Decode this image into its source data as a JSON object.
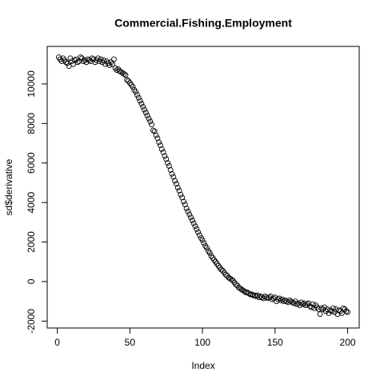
{
  "chart_data": {
    "type": "scatter",
    "title": "Commercial.Fishing.Employment",
    "x_label": "Index",
    "y_label": "sd$derivative",
    "x": [
      1,
      2,
      3,
      4,
      5,
      6,
      7,
      8,
      9,
      10,
      11,
      12,
      13,
      14,
      15,
      16,
      17,
      18,
      19,
      20,
      21,
      22,
      23,
      24,
      25,
      26,
      27,
      28,
      29,
      30,
      31,
      32,
      33,
      34,
      35,
      36,
      37,
      38,
      39,
      40,
      41,
      42,
      43,
      44,
      45,
      46,
      47,
      48,
      49,
      50,
      51,
      52,
      53,
      54,
      55,
      56,
      57,
      58,
      59,
      60,
      61,
      62,
      63,
      64,
      65,
      66,
      67,
      68,
      69,
      70,
      71,
      72,
      73,
      74,
      75,
      76,
      77,
      78,
      79,
      80,
      81,
      82,
      83,
      84,
      85,
      86,
      87,
      88,
      89,
      90,
      91,
      92,
      93,
      94,
      95,
      96,
      97,
      98,
      99,
      100,
      101,
      102,
      103,
      104,
      105,
      106,
      107,
      108,
      109,
      110,
      111,
      112,
      113,
      114,
      115,
      116,
      117,
      118,
      119,
      120,
      121,
      122,
      123,
      124,
      125,
      126,
      127,
      128,
      129,
      130,
      131,
      132,
      133,
      134,
      135,
      136,
      137,
      138,
      139,
      140,
      141,
      142,
      143,
      144,
      145,
      146,
      147,
      148,
      149,
      150,
      151,
      152,
      153,
      154,
      155,
      156,
      157,
      158,
      159,
      160,
      161,
      162,
      163,
      164,
      165,
      166,
      167,
      168,
      169,
      170,
      171,
      172,
      173,
      174,
      175,
      176,
      177,
      178,
      179,
      180,
      181,
      182,
      183,
      184,
      185,
      186,
      187,
      188,
      189,
      190,
      191,
      192,
      193,
      194,
      195,
      196,
      197,
      198,
      199,
      200
    ],
    "values": [
      11350,
      11250,
      11150,
      11300,
      11200,
      11100,
      11050,
      10900,
      11300,
      11150,
      11000,
      11200,
      11250,
      11100,
      11150,
      11350,
      11300,
      11150,
      11200,
      11100,
      11250,
      11200,
      11150,
      11300,
      11250,
      11100,
      11200,
      11300,
      11150,
      11250,
      11100,
      11200,
      11000,
      11150,
      11050,
      10950,
      11100,
      11000,
      11250,
      10800,
      10700,
      10750,
      10650,
      10600,
      10550,
      10500,
      10450,
      10200,
      10150,
      10050,
      9950,
      9850,
      9700,
      9600,
      9450,
      9300,
      9150,
      9000,
      8850,
      8700,
      8550,
      8400,
      8250,
      8100,
      7950,
      7650,
      7600,
      7400,
      7250,
      7050,
      6900,
      6700,
      6550,
      6350,
      6200,
      6000,
      5850,
      5650,
      5450,
      5300,
      5100,
      4950,
      4750,
      4600,
      4400,
      4250,
      4050,
      3900,
      3700,
      3550,
      3400,
      3250,
      3100,
      2950,
      2800,
      2650,
      2500,
      2350,
      2200,
      2100,
      1950,
      1800,
      1700,
      1550,
      1450,
      1300,
      1200,
      1100,
      1000,
      900,
      800,
      700,
      600,
      550,
      450,
      350,
      300,
      200,
      150,
      100,
      50,
      -50,
      -150,
      -200,
      -300,
      -350,
      -400,
      -450,
      -500,
      -550,
      -550,
      -600,
      -650,
      -650,
      -700,
      -700,
      -750,
      -700,
      -800,
      -750,
      -800,
      -850,
      -750,
      -800,
      -850,
      -800,
      -750,
      -900,
      -850,
      -800,
      -1000,
      -900,
      -850,
      -950,
      -900,
      -1000,
      -950,
      -1000,
      -1050,
      -950,
      -1000,
      -1050,
      -1100,
      -1000,
      -1150,
      -1100,
      -1200,
      -1050,
      -1150,
      -1100,
      -1200,
      -1150,
      -1100,
      -1250,
      -1300,
      -1150,
      -1350,
      -1200,
      -1300,
      -1400,
      -1650,
      -1350,
      -1400,
      -1300,
      -1500,
      -1400,
      -1600,
      -1450,
      -1500,
      -1350,
      -1550,
      -1400,
      -1650,
      -1450,
      -1500,
      -1600,
      -1350,
      -1400,
      -1500,
      -1550
    ],
    "color": "#000000",
    "xlim": [
      -6.96,
      207.96
    ],
    "xticks": [
      0,
      50,
      100,
      150,
      200
    ],
    "ylim": [
      -2350,
      11900
    ],
    "yticks": [
      -2000,
      0,
      2000,
      4000,
      6000,
      8000,
      10000
    ]
  }
}
